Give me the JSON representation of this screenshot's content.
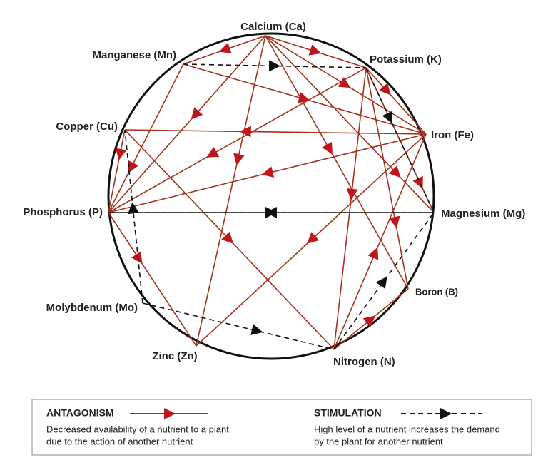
{
  "nodes": [
    {
      "label": "Calcium (Ca)"
    },
    {
      "label": "Potassium (K)"
    },
    {
      "label": "Iron (Fe)"
    },
    {
      "label": "Magnesium (Mg)"
    },
    {
      "label": "Boron (B)"
    },
    {
      "label": "Nitrogen (N)"
    },
    {
      "label": "Zinc (Zn)"
    },
    {
      "label": "Molybdenum (Mo)"
    },
    {
      "label": "Phosphorus (P)"
    },
    {
      "label": "Copper (Cu)"
    },
    {
      "label": "Manganese (Mn)"
    }
  ],
  "legend": {
    "antagonism": {
      "title": "ANTAGONISM",
      "lines": [
        "Decreased availability of a nutrient to a plant",
        "due to the action of another nutrient"
      ]
    },
    "stimulation": {
      "title": "STIMULATION",
      "lines": [
        "High level of a nutrient increases the demand",
        "by the plant for another nutrient"
      ]
    }
  }
}
